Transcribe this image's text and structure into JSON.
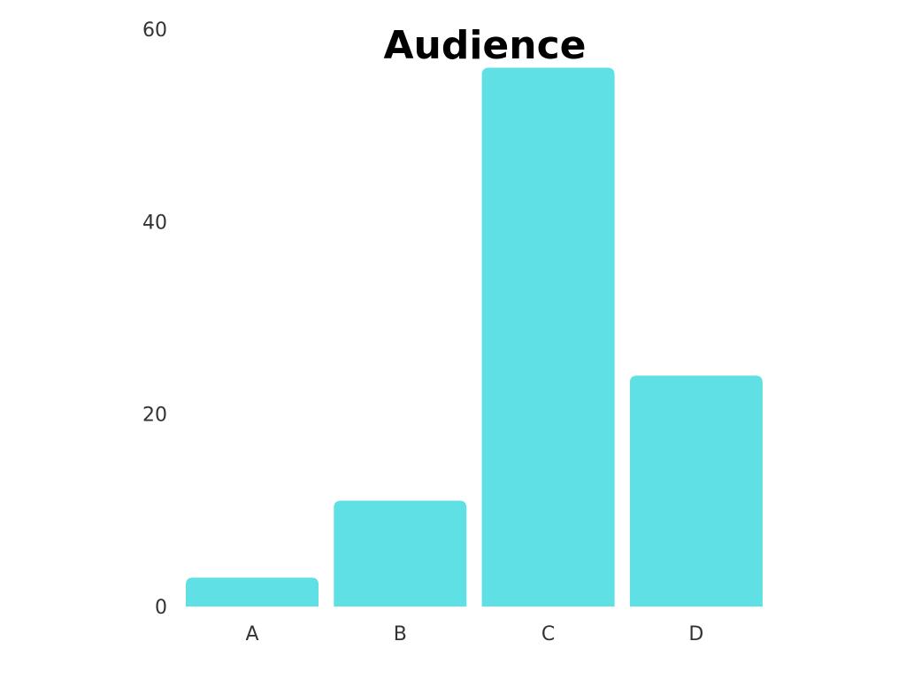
{
  "chart_data": {
    "type": "bar",
    "title": "Audience",
    "categories": [
      "A",
      "B",
      "C",
      "D"
    ],
    "values": [
      3,
      11,
      56,
      24
    ],
    "ylim": [
      0,
      60
    ],
    "yticks": [
      0,
      20,
      40,
      60
    ],
    "xlabel": "",
    "ylabel": "",
    "grid": false,
    "bar_color": "#5ee0e4"
  }
}
